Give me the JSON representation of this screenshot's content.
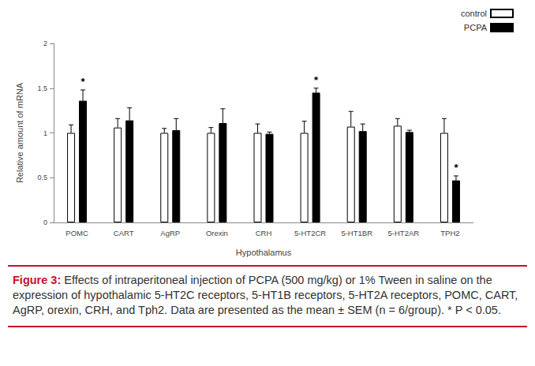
{
  "chart_data": {
    "type": "bar",
    "x_label": "Hypothalamus",
    "y_label": "Relative amount of mRNA",
    "categories": [
      "POMC",
      "CART",
      "AgRP",
      "Orexin",
      "CRH",
      "5-HT2CR",
      "5-HT1BR",
      "5-HT2AR",
      "TPH2"
    ],
    "series": [
      {
        "name": "control",
        "color": "#ffffff",
        "values": [
          1.0,
          1.06,
          1.0,
          1.0,
          1.0,
          1.0,
          1.07,
          1.08,
          1.0
        ],
        "errors": [
          0.09,
          0.1,
          0.05,
          0.06,
          0.1,
          0.13,
          0.17,
          0.08,
          0.16
        ]
      },
      {
        "name": "PCPA",
        "color": "#000000",
        "values": [
          1.36,
          1.14,
          1.03,
          1.11,
          0.99,
          1.45,
          1.02,
          1.01,
          0.47
        ],
        "errors": [
          0.12,
          0.14,
          0.13,
          0.16,
          0.02,
          0.05,
          0.08,
          0.02,
          0.05
        ],
        "annotations": [
          "*",
          null,
          null,
          null,
          null,
          "*",
          null,
          null,
          "*"
        ]
      }
    ],
    "ylim": [
      0,
      2
    ],
    "yticks": [
      0,
      0.5,
      1,
      1.5,
      2
    ],
    "grid": false,
    "legend": "top right"
  },
  "caption": {
    "label": "Figure 3:",
    "text": "Effects of intraperitoneal injection of PCPA (500 mg/kg) or 1% Tween in saline on the expression of hypothalamic 5-HT2C receptors, 5-HT1B receptors, 5-HT2A receptors, POMC, CART, AgRP, orexin, CRH, and Tph2. Data are presented as the mean ± SEM (n = 6/group). * P < 0.05."
  }
}
